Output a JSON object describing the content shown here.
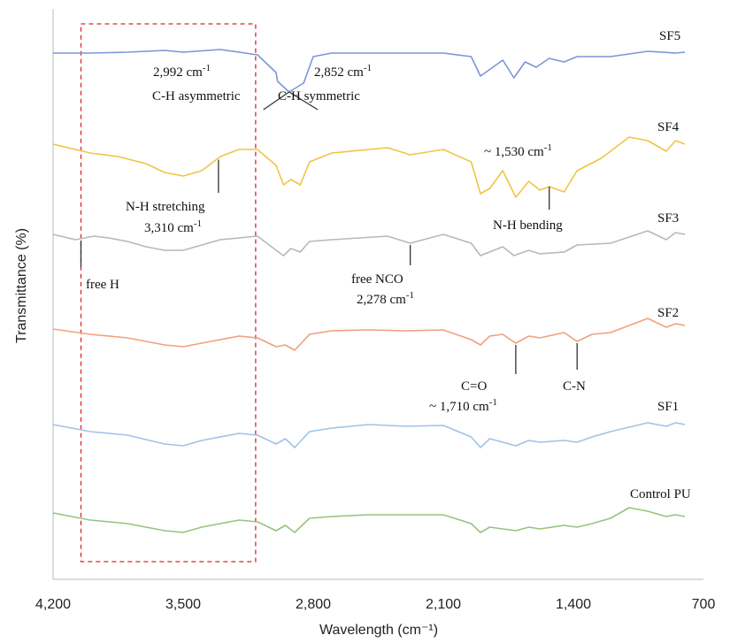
{
  "chart_data": {
    "type": "line",
    "xlabel": "Wavelength (cm⁻¹)",
    "ylabel": "Transmittance (%)",
    "xlim": [
      4200,
      700
    ],
    "x_reversed": true,
    "grid": false,
    "x_ticks": [
      {
        "value": 4200,
        "label": "4,200"
      },
      {
        "value": 3500,
        "label": "3,500"
      },
      {
        "value": 2800,
        "label": "2,800"
      },
      {
        "value": 2100,
        "label": "2,100"
      },
      {
        "value": 1400,
        "label": "1,400"
      },
      {
        "value": 700,
        "label": "700"
      }
    ],
    "highlight_region": {
      "x_from": 4050,
      "x_to": 3110,
      "style": "dashed",
      "color": "#e0202a"
    },
    "series": [
      {
        "name": "SF5",
        "color": "#7b96d8",
        "offset": 5,
        "points": [
          [
            4200,
            0
          ],
          [
            4000,
            0
          ],
          [
            3800,
            0.05
          ],
          [
            3600,
            0.15
          ],
          [
            3500,
            0.05
          ],
          [
            3300,
            0.2
          ],
          [
            3100,
            -0.1
          ],
          [
            3000,
            -1.1
          ],
          [
            2992,
            -1.6
          ],
          [
            2930,
            -2.2
          ],
          [
            2852,
            -1.7
          ],
          [
            2800,
            -0.2
          ],
          [
            2700,
            0
          ],
          [
            2400,
            0
          ],
          [
            2100,
            0
          ],
          [
            1950,
            -0.2
          ],
          [
            1900,
            -1.3
          ],
          [
            1780,
            -0.4
          ],
          [
            1720,
            -1.4
          ],
          [
            1660,
            -0.5
          ],
          [
            1600,
            -0.8
          ],
          [
            1530,
            -0.3
          ],
          [
            1450,
            -0.5
          ],
          [
            1380,
            -0.2
          ],
          [
            1200,
            -0.2
          ],
          [
            1000,
            0.1
          ],
          [
            850,
            0
          ],
          [
            800,
            0.05
          ]
        ]
      },
      {
        "name": "SF4",
        "color": "#f2c443",
        "offset": 4,
        "points": [
          [
            4200,
            0
          ],
          [
            4000,
            -0.5
          ],
          [
            3850,
            -0.7
          ],
          [
            3700,
            -1.1
          ],
          [
            3600,
            -1.6
          ],
          [
            3500,
            -1.8
          ],
          [
            3400,
            -1.5
          ],
          [
            3300,
            -0.7
          ],
          [
            3200,
            -0.3
          ],
          [
            3100,
            -0.3
          ],
          [
            3000,
            -1.2
          ],
          [
            2960,
            -2.3
          ],
          [
            2920,
            -2.0
          ],
          [
            2870,
            -2.3
          ],
          [
            2820,
            -1.0
          ],
          [
            2700,
            -0.5
          ],
          [
            2400,
            -0.2
          ],
          [
            2278,
            -0.6
          ],
          [
            2100,
            -0.3
          ],
          [
            1950,
            -1.0
          ],
          [
            1900,
            -2.8
          ],
          [
            1850,
            -2.5
          ],
          [
            1780,
            -1.5
          ],
          [
            1710,
            -3.0
          ],
          [
            1640,
            -2.1
          ],
          [
            1580,
            -2.6
          ],
          [
            1530,
            -2.4
          ],
          [
            1450,
            -2.7
          ],
          [
            1380,
            -1.5
          ],
          [
            1250,
            -0.8
          ],
          [
            1100,
            0.4
          ],
          [
            1000,
            0.2
          ],
          [
            900,
            -0.4
          ],
          [
            850,
            0.2
          ],
          [
            800,
            0
          ]
        ]
      },
      {
        "name": "SF3",
        "color": "#b8b8b8",
        "offset": 3,
        "points": [
          [
            4200,
            0
          ],
          [
            4080,
            -0.3
          ],
          [
            3980,
            -0.1
          ],
          [
            3900,
            -0.2
          ],
          [
            3800,
            -0.4
          ],
          [
            3700,
            -0.7
          ],
          [
            3600,
            -0.9
          ],
          [
            3500,
            -0.9
          ],
          [
            3400,
            -0.6
          ],
          [
            3300,
            -0.3
          ],
          [
            3200,
            -0.2
          ],
          [
            3100,
            -0.1
          ],
          [
            3000,
            -0.9
          ],
          [
            2960,
            -1.2
          ],
          [
            2920,
            -0.8
          ],
          [
            2870,
            -1.0
          ],
          [
            2820,
            -0.4
          ],
          [
            2700,
            -0.3
          ],
          [
            2400,
            -0.1
          ],
          [
            2278,
            -0.5
          ],
          [
            2100,
            0.0
          ],
          [
            1950,
            -0.5
          ],
          [
            1900,
            -1.2
          ],
          [
            1780,
            -0.7
          ],
          [
            1720,
            -1.2
          ],
          [
            1640,
            -0.9
          ],
          [
            1580,
            -1.1
          ],
          [
            1450,
            -1.0
          ],
          [
            1380,
            -0.6
          ],
          [
            1200,
            -0.5
          ],
          [
            1000,
            0.2
          ],
          [
            900,
            -0.3
          ],
          [
            850,
            0.1
          ],
          [
            800,
            0
          ]
        ]
      },
      {
        "name": "SF2",
        "color": "#f0a07e",
        "offset": 2,
        "points": [
          [
            4200,
            0
          ],
          [
            4000,
            -0.3
          ],
          [
            3800,
            -0.5
          ],
          [
            3600,
            -0.9
          ],
          [
            3500,
            -1.0
          ],
          [
            3400,
            -0.8
          ],
          [
            3200,
            -0.4
          ],
          [
            3100,
            -0.5
          ],
          [
            3000,
            -1.0
          ],
          [
            2950,
            -0.9
          ],
          [
            2900,
            -1.2
          ],
          [
            2820,
            -0.3
          ],
          [
            2700,
            -0.1
          ],
          [
            2500,
            -0.05
          ],
          [
            2300,
            -0.1
          ],
          [
            2100,
            -0.05
          ],
          [
            1950,
            -0.6
          ],
          [
            1900,
            -0.9
          ],
          [
            1850,
            -0.4
          ],
          [
            1780,
            -0.3
          ],
          [
            1710,
            -0.8
          ],
          [
            1640,
            -0.4
          ],
          [
            1580,
            -0.5
          ],
          [
            1450,
            -0.2
          ],
          [
            1380,
            -0.7
          ],
          [
            1300,
            -0.3
          ],
          [
            1200,
            -0.2
          ],
          [
            1000,
            0.6
          ],
          [
            900,
            0.1
          ],
          [
            850,
            0.3
          ],
          [
            800,
            0.2
          ]
        ]
      },
      {
        "name": "SF1",
        "color": "#9fc3e8",
        "offset": 1,
        "points": [
          [
            4200,
            0
          ],
          [
            4000,
            -0.4
          ],
          [
            3800,
            -0.6
          ],
          [
            3600,
            -1.1
          ],
          [
            3500,
            -1.2
          ],
          [
            3400,
            -0.9
          ],
          [
            3200,
            -0.5
          ],
          [
            3100,
            -0.6
          ],
          [
            3000,
            -1.1
          ],
          [
            2950,
            -0.8
          ],
          [
            2900,
            -1.3
          ],
          [
            2820,
            -0.4
          ],
          [
            2700,
            -0.2
          ],
          [
            2500,
            0
          ],
          [
            2300,
            -0.1
          ],
          [
            2100,
            -0.05
          ],
          [
            1950,
            -0.7
          ],
          [
            1900,
            -1.3
          ],
          [
            1850,
            -0.8
          ],
          [
            1780,
            -1.0
          ],
          [
            1710,
            -1.2
          ],
          [
            1640,
            -0.9
          ],
          [
            1580,
            -1.0
          ],
          [
            1450,
            -0.9
          ],
          [
            1380,
            -1.0
          ],
          [
            1300,
            -0.7
          ],
          [
            1200,
            -0.4
          ],
          [
            1000,
            0.1
          ],
          [
            900,
            -0.1
          ],
          [
            850,
            0.1
          ],
          [
            800,
            0
          ]
        ]
      },
      {
        "name": "Control PU",
        "color": "#96c47e",
        "offset": 0,
        "points": [
          [
            4200,
            0
          ],
          [
            4000,
            -0.4
          ],
          [
            3800,
            -0.6
          ],
          [
            3600,
            -1.0
          ],
          [
            3500,
            -1.1
          ],
          [
            3400,
            -0.8
          ],
          [
            3200,
            -0.4
          ],
          [
            3100,
            -0.5
          ],
          [
            3000,
            -1.0
          ],
          [
            2950,
            -0.7
          ],
          [
            2900,
            -1.1
          ],
          [
            2820,
            -0.3
          ],
          [
            2700,
            -0.2
          ],
          [
            2500,
            -0.1
          ],
          [
            2300,
            -0.1
          ],
          [
            2100,
            -0.1
          ],
          [
            1950,
            -0.6
          ],
          [
            1900,
            -1.1
          ],
          [
            1850,
            -0.8
          ],
          [
            1780,
            -0.9
          ],
          [
            1710,
            -1.0
          ],
          [
            1640,
            -0.8
          ],
          [
            1580,
            -0.9
          ],
          [
            1450,
            -0.7
          ],
          [
            1380,
            -0.8
          ],
          [
            1300,
            -0.6
          ],
          [
            1200,
            -0.3
          ],
          [
            1100,
            0.3
          ],
          [
            1000,
            0.1
          ],
          [
            900,
            -0.2
          ],
          [
            850,
            -0.1
          ],
          [
            800,
            -0.2
          ]
        ]
      }
    ],
    "annotations": [
      {
        "text": "2,992 cm⁻¹",
        "x": 2992,
        "series": "SF5",
        "side": "left-label"
      },
      {
        "text": "C-H asymmetric",
        "x": 2992,
        "series": "SF5",
        "side": "left-label-2"
      },
      {
        "text": "2,852 cm⁻¹",
        "x": 2852,
        "series": "SF5",
        "side": "right-label"
      },
      {
        "text": "C-H symmetric",
        "x": 2852,
        "series": "SF5",
        "side": "right-label-2"
      },
      {
        "text": "~ 1,530 cm⁻¹",
        "x": 1530,
        "series": "SF4",
        "side": "above"
      },
      {
        "text": "N-H bending",
        "x": 1530,
        "series": "SF4",
        "side": "below"
      },
      {
        "text": "N-H stretching",
        "x": 3310,
        "series": "SF4",
        "side": "below"
      },
      {
        "text": "3,310 cm⁻¹",
        "x": 3310,
        "series": "SF4",
        "side": "below-2"
      },
      {
        "text": "free H",
        "x": 4050,
        "series": "SF3",
        "side": "below"
      },
      {
        "text": "free NCO",
        "x": 2278,
        "series": "SF3",
        "side": "below"
      },
      {
        "text": "2,278 cm⁻¹",
        "x": 2278,
        "series": "SF3",
        "side": "below-2"
      },
      {
        "text": "C=O",
        "x": 1710,
        "series": "SF2",
        "side": "below"
      },
      {
        "text": "~ 1,710 cm⁻¹",
        "x": 1710,
        "series": "SF2",
        "side": "below-2"
      },
      {
        "text": "C-N",
        "x": 1380,
        "series": "SF2",
        "side": "below"
      }
    ]
  }
}
